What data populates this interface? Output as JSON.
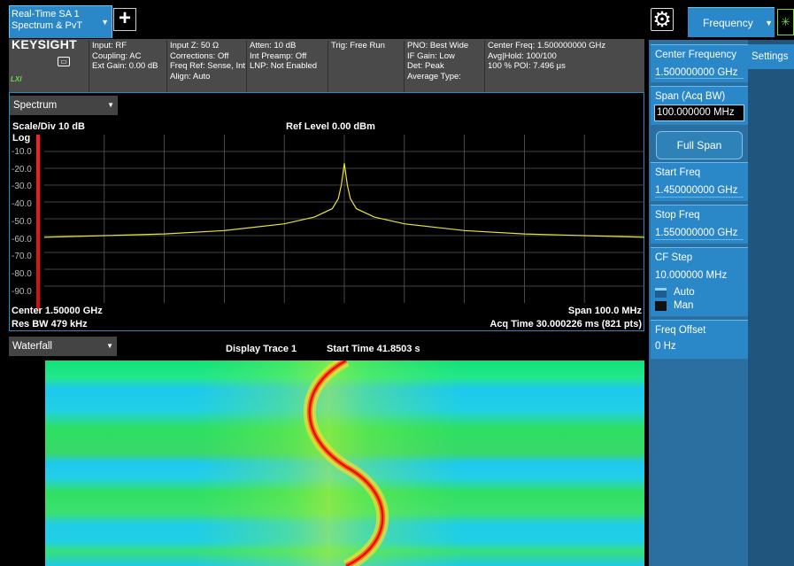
{
  "tabs": {
    "mode_line1": "Real-Time SA 1",
    "mode_line2": "Spectrum & PvT",
    "add_symbol": "+",
    "menu_title": "Frequency"
  },
  "brand": {
    "logo": "KEYSIGHT",
    "lxi": "LXI"
  },
  "info": {
    "col1": [
      "Input: RF",
      "Coupling: AC",
      "Ext Gain: 0.00 dB"
    ],
    "col2": [
      "Input Z: 50 Ω",
      "Corrections: Off",
      "Freq Ref: Sense, Int",
      "Align: Auto"
    ],
    "col3": [
      "Atten: 10 dB",
      "Int Preamp: Off",
      "LNP: Not Enabled"
    ],
    "col4": [
      "Trig: Free Run"
    ],
    "col5": [
      "PNO: Best Wide",
      "IF Gain: Low",
      "Det: Peak",
      "Average Type:"
    ],
    "col6": [
      "Center Freq: 1.500000000 GHz",
      "Avg|Hold: 100/100",
      "100 % POI: 7.496 µs"
    ]
  },
  "spectrum": {
    "window_title": "Spectrum",
    "scale": "Scale/Div 10 dB",
    "ref_level": "Ref Level 0.00 dBm",
    "log": "Log",
    "y_ticks": [
      "-10.0",
      "-20.0",
      "-30.0",
      "-40.0",
      "-50.0",
      "-60.0",
      "-70.0",
      "-80.0",
      "-90.0"
    ],
    "center": "Center 1.50000 GHz",
    "res_bw": "Res BW 479 kHz",
    "span": "Span 100.0 MHz",
    "acq_time": "Acq Time 30.000226 ms (821 pts)",
    "trace_color": "#e8e23a",
    "grid_color": "#5a5a5a"
  },
  "waterfall": {
    "window_title": "Waterfall",
    "display_trace": "Display Trace 1",
    "start_time": "Start Time 41.8503 s"
  },
  "panel": {
    "settings_tab": "Settings",
    "center_freq_label": "Center Frequency",
    "center_freq_value": "1.500000000 GHz",
    "span_label": "Span (Acq BW)",
    "span_value": "100.000000 MHz",
    "full_span": "Full Span",
    "start_freq_label": "Start Freq",
    "start_freq_value": "1.450000000 GHz",
    "stop_freq_label": "Stop Freq",
    "stop_freq_value": "1.550000000 GHz",
    "cf_step_label": "CF Step",
    "cf_step_value": "10.000000 MHz",
    "cf_step_auto": "Auto",
    "cf_step_man": "Man",
    "freq_offset_label": "Freq Offset",
    "freq_offset_value": "0 Hz"
  },
  "chart_data": {
    "type": "line",
    "title": "Ref Level 0.00 dBm",
    "xlabel": "",
    "ylabel": "",
    "xlim": [
      1450,
      1550
    ],
    "ylim": [
      -100,
      0
    ],
    "grid": true,
    "series": [
      {
        "x": [
          1450,
          1460,
          1470,
          1480,
          1490,
          1495,
          1498,
          1499,
          1499.5,
          1500,
          1500.5,
          1501,
          1502,
          1505,
          1510,
          1520,
          1530,
          1540,
          1550
        ],
        "values": [
          -61,
          -60,
          -59,
          -57,
          -53,
          -49,
          -44,
          -38,
          -30,
          -17,
          -30,
          -38,
          -44,
          -49,
          -53,
          -57,
          -59,
          -60,
          -61
        ]
      }
    ]
  }
}
